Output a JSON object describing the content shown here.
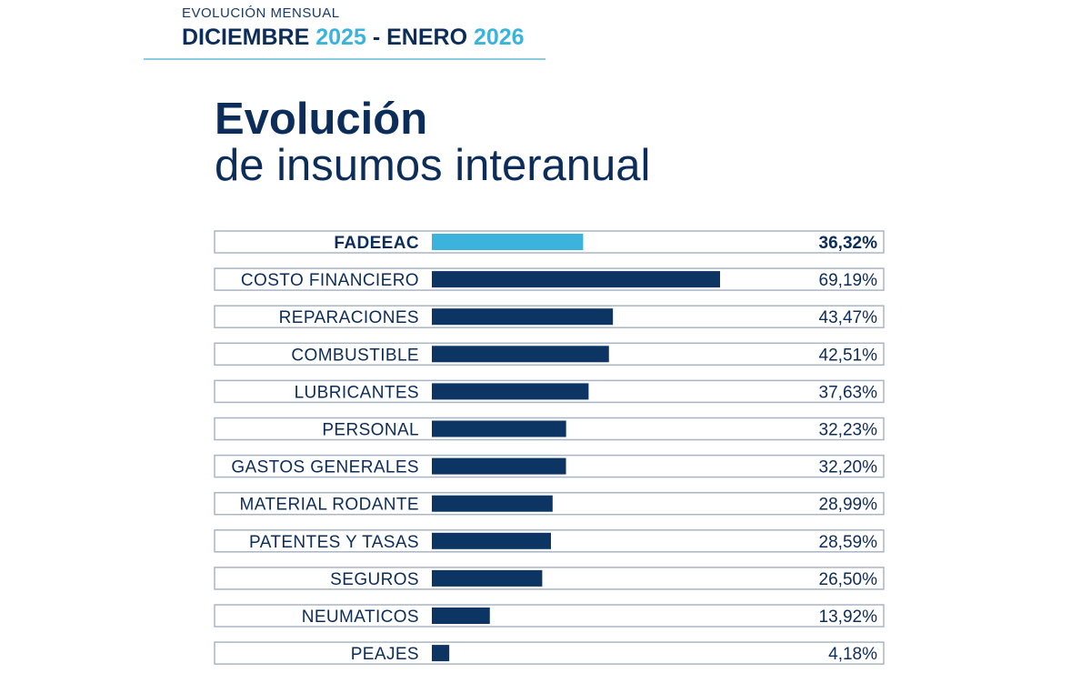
{
  "header": {
    "kicker": "EVOLUCIÓN MENSUAL",
    "period_month_a": "DICIEMBRE",
    "period_year_a": "2025",
    "period_sep": "-",
    "period_month_b": "ENERO",
    "period_year_b": "2026"
  },
  "title": {
    "line1": "Evolución",
    "line2": "de insumos interanual"
  },
  "colors": {
    "highlight_bar": "#3bb3dc",
    "bar": "#0c3564",
    "text": "#0c2c5a"
  },
  "chart_data": {
    "type": "bar",
    "orientation": "horizontal",
    "categories": [
      "FADEEAC",
      "COSTO FINANCIERO",
      "REPARACIONES",
      "COMBUSTIBLE",
      "LUBRICANTES",
      "PERSONAL",
      "GASTOS GENERALES",
      "MATERIAL RODANTE",
      "PATENTES Y TASAS",
      "SEGUROS",
      "NEUMATICOS",
      "PEAJES"
    ],
    "values": [
      36.32,
      69.19,
      43.47,
      42.51,
      37.63,
      32.23,
      32.2,
      28.99,
      28.59,
      26.5,
      13.92,
      4.18
    ],
    "value_labels": [
      "36,32%",
      "69,19%",
      "43,47%",
      "42,51%",
      "37,63%",
      "32,23%",
      "32,20%",
      "28,99%",
      "28,59%",
      "26,50%",
      "13,92%",
      "4,18%"
    ],
    "highlight_category": "FADEEAC",
    "unit": "%",
    "xlim": [
      0,
      100
    ],
    "grid": false,
    "legend": "none"
  }
}
